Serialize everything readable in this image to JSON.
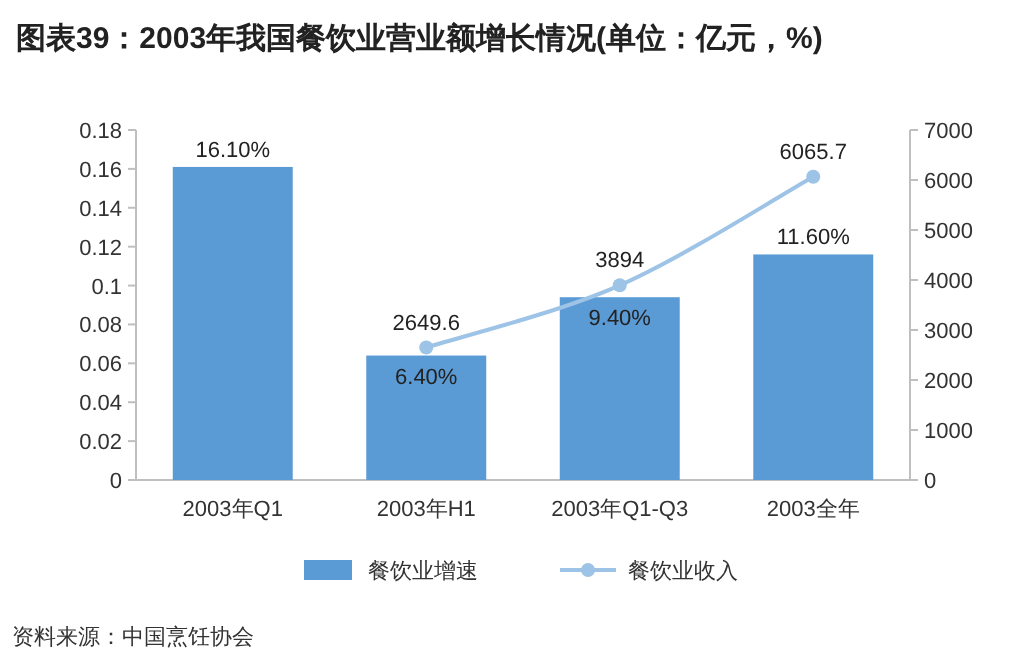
{
  "chart_data": {
    "type": "bar",
    "title": "图表39：2003年我国餐饮业营业额增长情况(单位：亿元，%)",
    "categories": [
      "2003年Q1",
      "2003年H1",
      "2003年Q1-Q3",
      "2003全年"
    ],
    "series": [
      {
        "name": "餐饮业增速",
        "color": "#5b9bd5",
        "values": [
          0.161,
          0.064,
          0.094,
          0.116
        ],
        "value_labels": [
          "16.10%",
          "6.40%",
          "9.40%",
          "11.60%"
        ]
      },
      {
        "name": "餐饮业收入",
        "type": "line",
        "axis": "y2",
        "color": "#9dc3e6",
        "marker": "circle",
        "values": [
          null,
          2649.6,
          3894,
          6065.7
        ],
        "value_labels": [
          null,
          "2649.6",
          "3894",
          "6065.7"
        ]
      }
    ],
    "ylim": [
      0,
      0.18
    ],
    "yticks": [
      0,
      0.02,
      0.04,
      0.06,
      0.08,
      0.1,
      0.12,
      0.14,
      0.16,
      0.18
    ],
    "y2lim": [
      0,
      7000
    ],
    "y2ticks": [
      0,
      1000,
      2000,
      3000,
      4000,
      5000,
      6000,
      7000
    ],
    "legend": "bottom",
    "annotations": [
      "资料来源：中国烹饪协会"
    ]
  }
}
